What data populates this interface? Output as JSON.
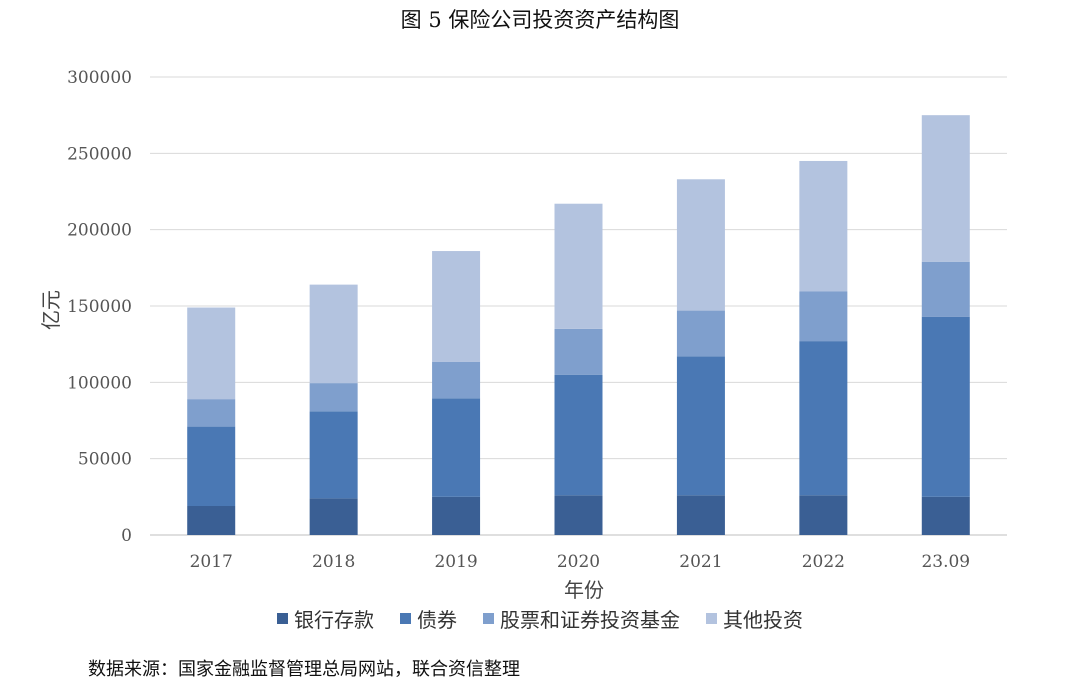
{
  "title": "图 5  保险公司投资资产结构图",
  "source": "数据来源：国家金融监督管理总局网站，联合资信整理",
  "chart_data": {
    "type": "bar",
    "stacked": true,
    "xlabel": "年份",
    "ylabel": "亿元",
    "ylim": [
      0,
      300000
    ],
    "yticks": [
      "0",
      "50000",
      "100000",
      "150000",
      "200000",
      "250000",
      "300000"
    ],
    "categories": [
      "2017",
      "2018",
      "2019",
      "2020",
      "2021",
      "2022",
      "23.09"
    ],
    "series": [
      {
        "name": "银行存款",
        "color": "#3a5f94",
        "values": [
          19000,
          24000,
          25000,
          26000,
          26000,
          26000,
          25000
        ]
      },
      {
        "name": "债券",
        "color": "#4a78b4",
        "values": [
          52000,
          57000,
          64500,
          79000,
          91000,
          101000,
          118000
        ]
      },
      {
        "name": "股票和证券投资基金",
        "color": "#7f9fcd",
        "values": [
          18000,
          18500,
          24000,
          30000,
          30000,
          32500,
          36000
        ]
      },
      {
        "name": "其他投资",
        "color": "#b3c3df",
        "values": [
          60000,
          64500,
          72500,
          82000,
          86000,
          85500,
          96000
        ]
      }
    ],
    "legend_position": "bottom"
  }
}
